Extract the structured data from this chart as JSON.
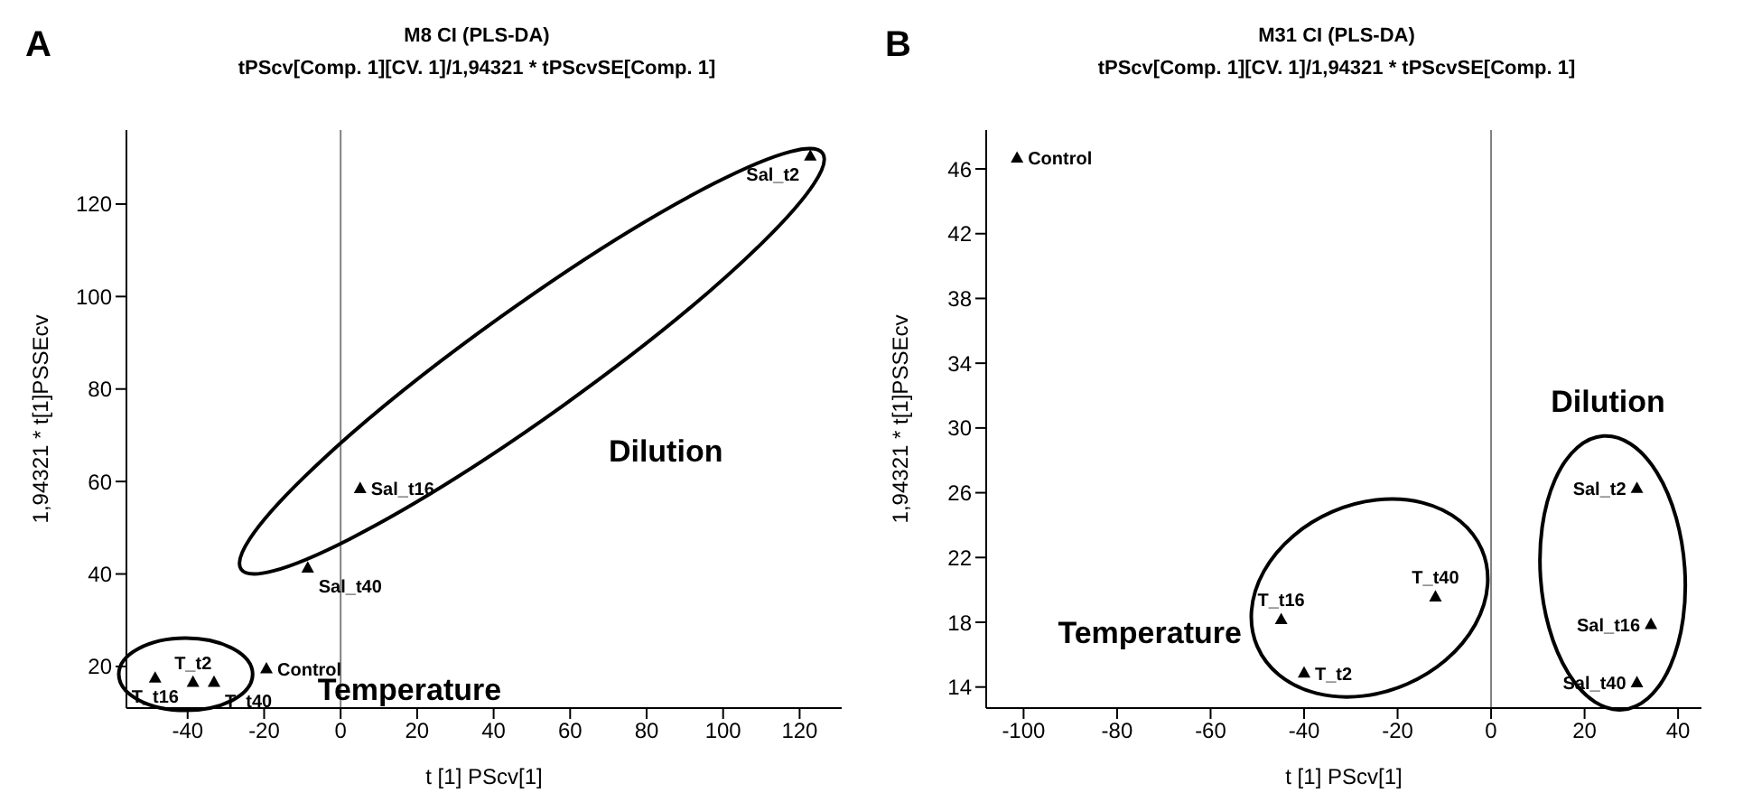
{
  "chart_data": [
    {
      "type": "scatter",
      "title": "M8 CI (PLS-DA)",
      "subtitle": "tPScv[Comp. 1][CV. 1]/1,94321 * tPScvSE[Comp. 1]",
      "xlabel": "t [1] PScv[1]",
      "ylabel": "1,94321 * t[1]PSSEcv",
      "marker": "triangle",
      "grid": false,
      "legend": false,
      "xlim": [
        -56,
        131
      ],
      "xticks": [
        -40,
        -20,
        0,
        20,
        40,
        60,
        80,
        100,
        120
      ],
      "ylim": [
        11,
        136
      ],
      "yticks": [
        20,
        40,
        60,
        80,
        100,
        120
      ],
      "ref_lines": [
        {
          "axis": "x",
          "value": 0,
          "color": "#808080"
        }
      ],
      "annotations": [
        "A",
        "Dilution",
        "Temperature"
      ],
      "series": [
        {
          "name": "Sal_t2",
          "color": "#000000",
          "x": [
            122.8
          ],
          "values": [
            130.5
          ]
        },
        {
          "name": "Sal_t16",
          "color": "#000000",
          "x": [
            5.1
          ],
          "values": [
            58.6
          ]
        },
        {
          "name": "Sal_t40",
          "color": "#000000",
          "x": [
            -8.6
          ],
          "values": [
            41.4
          ]
        },
        {
          "name": "Control",
          "color": "#000000",
          "x": [
            -19.4
          ],
          "values": [
            19.6
          ]
        },
        {
          "name": "T_t16",
          "color": "#000000",
          "x": [
            -48.5
          ],
          "values": [
            17.6
          ]
        },
        {
          "name": "T_t2",
          "color": "#000000",
          "x": [
            -38.6
          ],
          "values": [
            16.7
          ]
        },
        {
          "name": "T_t40",
          "color": "#000000",
          "x": [
            -33.1
          ],
          "values": [
            16.7
          ]
        }
      ]
    },
    {
      "type": "scatter",
      "title": "M31 CI (PLS-DA)",
      "subtitle": "tPScv[Comp. 1][CV. 1]/1,94321 * tPScvSE[Comp. 1]",
      "xlabel": "t [1] PScv[1]",
      "ylabel": "1,94321 * t[1]PSSEcv",
      "marker": "triangle",
      "grid": false,
      "legend": false,
      "xlim": [
        -108,
        45
      ],
      "xticks": [
        -100,
        -80,
        -60,
        -40,
        -20,
        0,
        20,
        40
      ],
      "ylim": [
        12.7,
        48.4
      ],
      "yticks": [
        14,
        18,
        22,
        26,
        30,
        34,
        38,
        42,
        46
      ],
      "ref_lines": [
        {
          "axis": "x",
          "value": 0,
          "color": "#808080"
        }
      ],
      "annotations": [
        "B",
        "Dilution",
        "Temperature"
      ],
      "series": [
        {
          "name": "Control",
          "color": "#000000",
          "x": [
            -101.4
          ],
          "values": [
            46.7
          ]
        },
        {
          "name": "T_t16",
          "color": "#000000",
          "x": [
            -44.9
          ],
          "values": [
            18.2
          ]
        },
        {
          "name": "T_t2",
          "color": "#000000",
          "x": [
            -40
          ],
          "values": [
            14.9
          ]
        },
        {
          "name": "T_t40",
          "color": "#000000",
          "x": [
            -11.9
          ],
          "values": [
            19.6
          ]
        },
        {
          "name": "Sal_t2",
          "color": "#000000",
          "x": [
            31.2
          ],
          "values": [
            26.3
          ]
        },
        {
          "name": "Sal_t16",
          "color": "#000000",
          "x": [
            34.2
          ],
          "values": [
            17.9
          ]
        },
        {
          "name": "Sal_t40",
          "color": "#000000",
          "x": [
            31.2
          ],
          "values": [
            14.3
          ]
        }
      ]
    }
  ]
}
